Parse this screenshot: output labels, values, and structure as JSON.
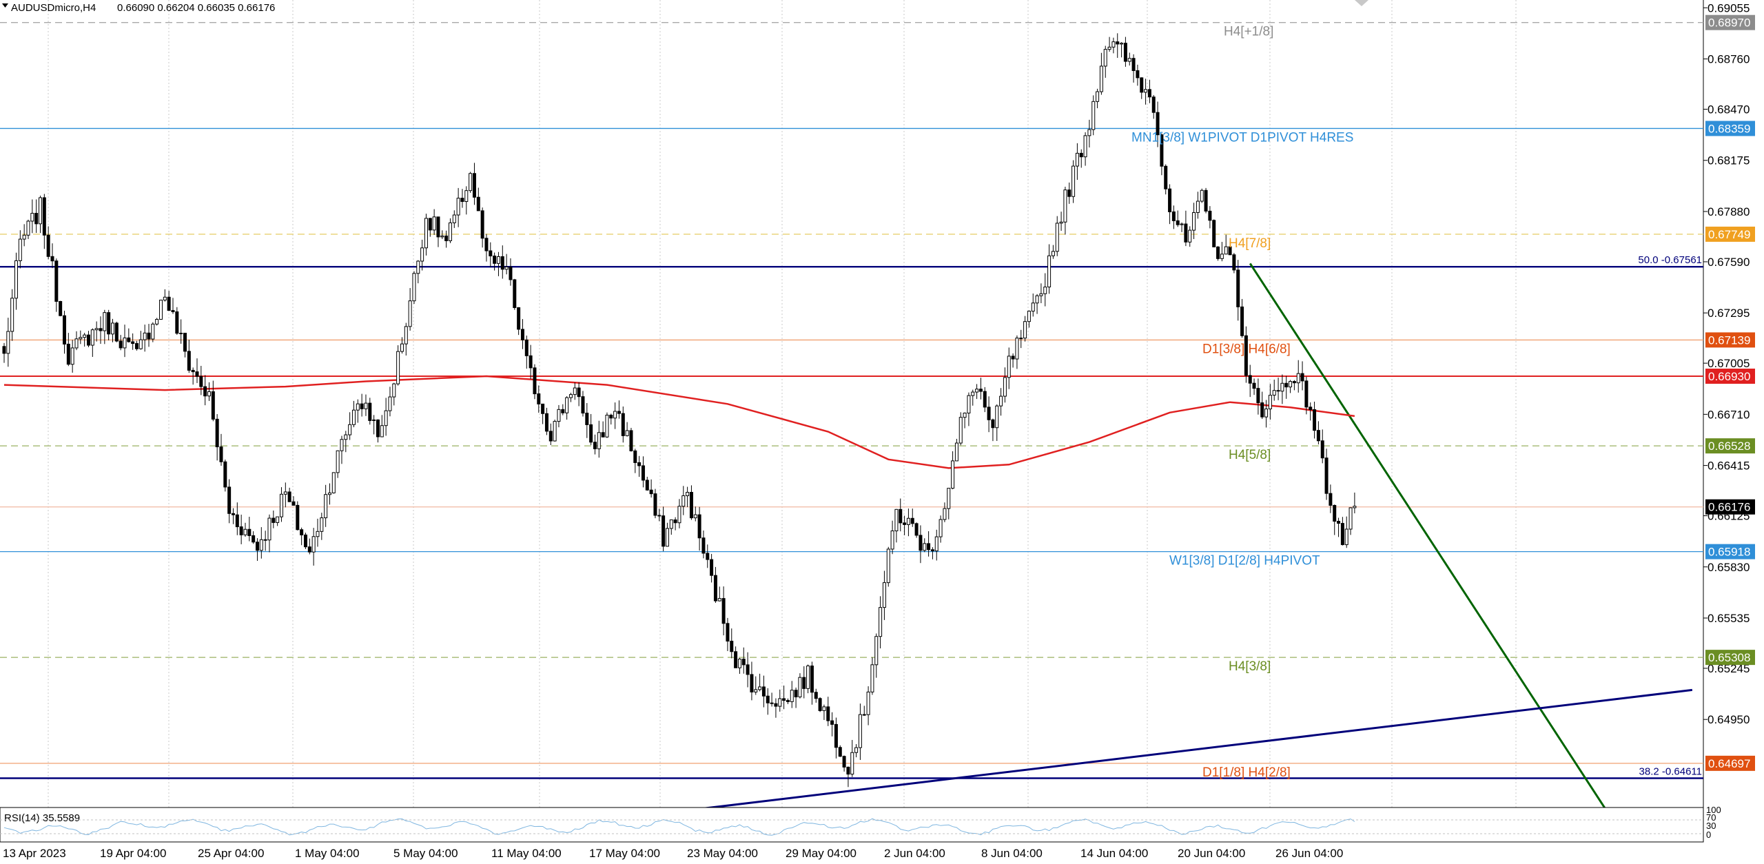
{
  "header": {
    "symbol": "AUDUSDmicro,H4",
    "ohlc": "0.66090 0.66204 0.66035 0.66176"
  },
  "rsi": {
    "label": "RSI(14) 35.5589",
    "levels": [
      "100",
      "70",
      "30",
      "0"
    ]
  },
  "chart_data": {
    "type": "candlestick",
    "symbol": "AUDUSDmicro",
    "timeframe": "H4",
    "price_range": [
      0.6445,
      0.691
    ],
    "price_ticks": [
      "0.69055",
      "0.68760",
      "0.68470",
      "0.68175",
      "0.67880",
      "0.67590",
      "0.67295",
      "0.67005",
      "0.66710",
      "0.66415",
      "0.66125",
      "0.65830",
      "0.65535",
      "0.65245",
      "0.64950"
    ],
    "x_tick_labels": [
      "13 Apr 2023",
      "19 Apr 04:00",
      "25 Apr 04:00",
      "1 May 04:00",
      "5 May 04:00",
      "11 May 04:00",
      "17 May 04:00",
      "23 May 04:00",
      "29 May 04:00",
      "2 Jun 04:00",
      "8 Jun 04:00",
      "14 Jun 04:00",
      "20 Jun 04:00",
      "26 Jun 04:00"
    ],
    "current_price": "0.66176",
    "horizontal_levels": [
      {
        "price": 0.6897,
        "label_box": "0.68970",
        "line_text": "H4[+1/8]",
        "color": "#a9a9a9",
        "style": "dash",
        "text_color": "#8c8c8c"
      },
      {
        "price": 0.68359,
        "label_box": "0.68359",
        "line_text": "MN1[3/8] W1PIVOT D1PIVOT H4RES",
        "color": "#2f8fd8",
        "style": "solid",
        "text_color": "#2f8fd8"
      },
      {
        "price": 0.67749,
        "label_box": "0.67749",
        "line_text": "H4[7/8]",
        "color": "#e8d070",
        "style": "dash",
        "text_color": "#f0a020"
      },
      {
        "price": 0.67561,
        "label_box": "",
        "line_text": "50.0 -0.67561",
        "color": "#00007a",
        "style": "solid-thick",
        "text_color": "#00007a"
      },
      {
        "price": 0.67139,
        "label_box": "0.67139",
        "line_text": "D1[3/8] H4[6/8]",
        "color": "#f0a070",
        "style": "solid",
        "text_color": "#e05010"
      },
      {
        "price": 0.6693,
        "label_box": "0.66930",
        "line_text": "",
        "color": "#e02020",
        "style": "solid",
        "text_color": "#e02020"
      },
      {
        "price": 0.66528,
        "label_box": "0.66528",
        "line_text": "H4[5/8]",
        "color": "#9ab060",
        "style": "dash",
        "text_color": "#6b8e23"
      },
      {
        "price": 0.66176,
        "label_box": "0.66176",
        "line_text": "",
        "color": "#f0b8a0",
        "style": "solid",
        "text_color": "#000000"
      },
      {
        "price": 0.65918,
        "label_box": "0.65918",
        "line_text": "W1[3/8] D1[2/8] H4PIVOT",
        "color": "#2f8fd8",
        "style": "solid",
        "text_color": "#2f8fd8"
      },
      {
        "price": 0.65308,
        "label_box": "0.65308",
        "line_text": "H4[3/8]",
        "color": "#9ab060",
        "style": "dash",
        "text_color": "#6b8e23"
      },
      {
        "price": 0.64697,
        "label_box": "0.64697",
        "line_text": "D1[1/8] H4[2/8]",
        "color": "#f0a070",
        "style": "solid",
        "text_color": "#e05010"
      },
      {
        "price": 0.64611,
        "label_box": "",
        "line_text": "38.2 -0.64611",
        "color": "#00007a",
        "style": "solid-thick",
        "text_color": "#00007a"
      }
    ],
    "box_colors": {
      "0.68970": "#8c8c8c",
      "0.68359": "#2f8fd8",
      "0.67749": "#f0a020",
      "0.67139": "#e05010",
      "0.66930": "#e02020",
      "0.66528": "#6b8e23",
      "0.66176": "#000000",
      "0.65918": "#2f8fd8",
      "0.65308": "#6b8e23",
      "0.64697": "#e05010"
    },
    "anchors": [
      {
        "bar": 0,
        "price": 0.6705
      },
      {
        "bar": 4,
        "price": 0.677
      },
      {
        "bar": 9,
        "price": 0.679
      },
      {
        "bar": 16,
        "price": 0.6705
      },
      {
        "bar": 25,
        "price": 0.6725
      },
      {
        "bar": 33,
        "price": 0.6705
      },
      {
        "bar": 40,
        "price": 0.674
      },
      {
        "bar": 46,
        "price": 0.67
      },
      {
        "bar": 51,
        "price": 0.668
      },
      {
        "bar": 56,
        "price": 0.6615
      },
      {
        "bar": 63,
        "price": 0.6595
      },
      {
        "bar": 70,
        "price": 0.6625
      },
      {
        "bar": 76,
        "price": 0.659
      },
      {
        "bar": 82,
        "price": 0.664
      },
      {
        "bar": 88,
        "price": 0.668
      },
      {
        "bar": 94,
        "price": 0.666
      },
      {
        "bar": 100,
        "price": 0.6725
      },
      {
        "bar": 105,
        "price": 0.6785
      },
      {
        "bar": 110,
        "price": 0.677
      },
      {
        "bar": 116,
        "price": 0.681
      },
      {
        "bar": 120,
        "price": 0.676
      },
      {
        "bar": 125,
        "price": 0.6755
      },
      {
        "bar": 130,
        "price": 0.67
      },
      {
        "bar": 136,
        "price": 0.666
      },
      {
        "bar": 142,
        "price": 0.669
      },
      {
        "bar": 146,
        "price": 0.665
      },
      {
        "bar": 152,
        "price": 0.6675
      },
      {
        "bar": 158,
        "price": 0.664
      },
      {
        "bar": 164,
        "price": 0.66
      },
      {
        "bar": 170,
        "price": 0.6625
      },
      {
        "bar": 176,
        "price": 0.6575
      },
      {
        "bar": 182,
        "price": 0.653
      },
      {
        "bar": 188,
        "price": 0.651
      },
      {
        "bar": 194,
        "price": 0.6505
      },
      {
        "bar": 200,
        "price": 0.652
      },
      {
        "bar": 206,
        "price": 0.649
      },
      {
        "bar": 210,
        "price": 0.6468
      },
      {
        "bar": 214,
        "price": 0.65
      },
      {
        "bar": 218,
        "price": 0.656
      },
      {
        "bar": 222,
        "price": 0.6615
      },
      {
        "bar": 226,
        "price": 0.6605
      },
      {
        "bar": 230,
        "price": 0.659
      },
      {
        "bar": 234,
        "price": 0.662
      },
      {
        "bar": 238,
        "price": 0.6665
      },
      {
        "bar": 242,
        "price": 0.669
      },
      {
        "bar": 246,
        "price": 0.666
      },
      {
        "bar": 250,
        "price": 0.67
      },
      {
        "bar": 254,
        "price": 0.672
      },
      {
        "bar": 258,
        "price": 0.674
      },
      {
        "bar": 262,
        "price": 0.678
      },
      {
        "bar": 266,
        "price": 0.681
      },
      {
        "bar": 270,
        "price": 0.684
      },
      {
        "bar": 274,
        "price": 0.6885
      },
      {
        "bar": 278,
        "price": 0.688
      },
      {
        "bar": 282,
        "price": 0.6865
      },
      {
        "bar": 286,
        "price": 0.685
      },
      {
        "bar": 290,
        "price": 0.679
      },
      {
        "bar": 294,
        "price": 0.677
      },
      {
        "bar": 298,
        "price": 0.6795
      },
      {
        "bar": 302,
        "price": 0.6765
      },
      {
        "bar": 306,
        "price": 0.676
      },
      {
        "bar": 309,
        "price": 0.669
      },
      {
        "bar": 313,
        "price": 0.6675
      },
      {
        "bar": 317,
        "price": 0.6685
      },
      {
        "bar": 321,
        "price": 0.6695
      },
      {
        "bar": 325,
        "price": 0.6675
      },
      {
        "bar": 329,
        "price": 0.663
      },
      {
        "bar": 333,
        "price": 0.6598
      },
      {
        "bar": 336,
        "price": 0.6618
      }
    ],
    "ma_anchors": [
      {
        "bar": 0,
        "price": 0.6688
      },
      {
        "bar": 40,
        "price": 0.6685
      },
      {
        "bar": 70,
        "price": 0.6687
      },
      {
        "bar": 90,
        "price": 0.669
      },
      {
        "bar": 120,
        "price": 0.6693
      },
      {
        "bar": 150,
        "price": 0.6688
      },
      {
        "bar": 180,
        "price": 0.6677
      },
      {
        "bar": 205,
        "price": 0.6661
      },
      {
        "bar": 220,
        "price": 0.6645
      },
      {
        "bar": 235,
        "price": 0.664
      },
      {
        "bar": 250,
        "price": 0.6642
      },
      {
        "bar": 270,
        "price": 0.6655
      },
      {
        "bar": 290,
        "price": 0.6672
      },
      {
        "bar": 305,
        "price": 0.6678
      },
      {
        "bar": 320,
        "price": 0.6675
      },
      {
        "bar": 336,
        "price": 0.667
      }
    ],
    "trendlines": [
      {
        "name": "green-descending-trendline",
        "color": "#006400",
        "from": {
          "bar": 310,
          "price": 0.6758
        },
        "to": {
          "bar": 403,
          "price": 0.6427
        }
      },
      {
        "name": "navy-ascending-trendline",
        "color": "#00007a",
        "from": {
          "bar": 168,
          "price": 0.6442
        },
        "to": {
          "bar": 420,
          "price": 0.6512
        }
      }
    ]
  }
}
